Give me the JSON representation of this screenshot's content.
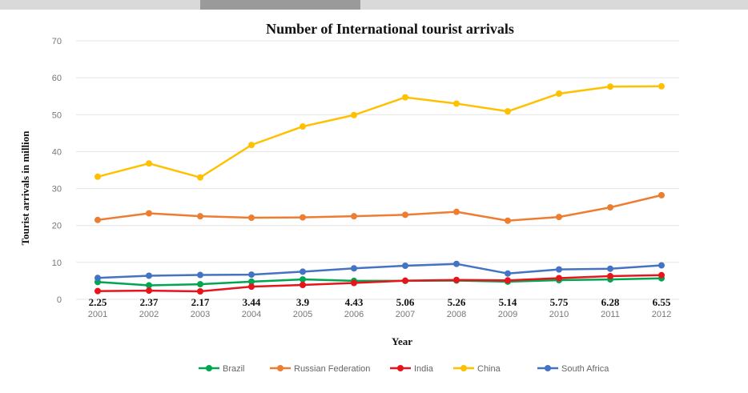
{
  "chart_data": {
    "type": "line",
    "title": "Number of International  tourist arrivals",
    "xlabel": "Year",
    "ylabel": "Tourist  arrivals in million",
    "ylim": [
      0,
      70
    ],
    "yticks": [
      0,
      10,
      20,
      30,
      40,
      50,
      60,
      70
    ],
    "categories": [
      "2001",
      "2002",
      "2003",
      "2004",
      "2005",
      "2006",
      "2007",
      "2008",
      "2009",
      "2010",
      "2011",
      "2012"
    ],
    "grid": true,
    "legend_position": "bottom",
    "series": [
      {
        "name": "Brazil",
        "color": "#00a651",
        "values": [
          4.7,
          3.8,
          4.1,
          4.8,
          5.4,
          5.0,
          5.0,
          5.1,
          4.8,
          5.2,
          5.4,
          5.7
        ]
      },
      {
        "name": "Russian Federation",
        "color": "#ed7d31",
        "values": [
          21.5,
          23.3,
          22.5,
          22.1,
          22.2,
          22.5,
          22.9,
          23.7,
          21.3,
          22.3,
          24.9,
          28.2
        ]
      },
      {
        "name": "India",
        "color": "#e8141c",
        "values": [
          2.25,
          2.37,
          2.17,
          3.44,
          3.9,
          4.43,
          5.06,
          5.26,
          5.14,
          5.75,
          6.28,
          6.55
        ],
        "data_labels": [
          "2.25",
          "2.37",
          "2.17",
          "3.44",
          "3.9",
          "4.43",
          "5.06",
          "5.26",
          "5.14",
          "5.75",
          "6.28",
          "6.55"
        ]
      },
      {
        "name": "China",
        "color": "#ffc000",
        "values": [
          33.2,
          36.8,
          33.0,
          41.8,
          46.8,
          49.9,
          54.7,
          53.0,
          50.9,
          55.7,
          57.6,
          57.7
        ]
      },
      {
        "name": "South Africa",
        "color": "#4472c4",
        "values": [
          5.8,
          6.4,
          6.6,
          6.7,
          7.5,
          8.4,
          9.1,
          9.6,
          7.0,
          8.1,
          8.3,
          9.2
        ]
      }
    ]
  }
}
